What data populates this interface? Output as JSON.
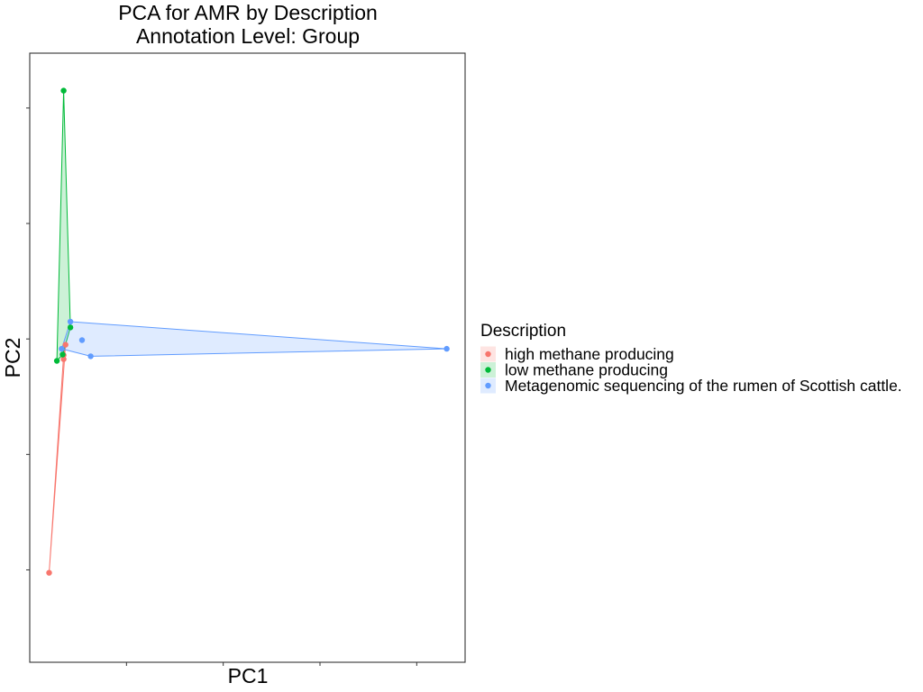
{
  "chart_data": {
    "type": "scatter",
    "title": [
      "PCA for AMR by Description",
      "Annotation Level: Group"
    ],
    "xlabel": "PC1",
    "ylabel": "PC2",
    "xlim": [
      0,
      45
    ],
    "ylim": [
      -5.6,
      4.95
    ],
    "x_ticks": [
      10,
      20,
      30,
      40
    ],
    "y_ticks": [
      -4,
      -2,
      0,
      2,
      4
    ],
    "tick_labels_shown": false,
    "grid": false,
    "hulls": true,
    "legend": {
      "title": "Description",
      "position": "right"
    },
    "series": [
      {
        "name": "high methane producing",
        "color": "#F8766D",
        "points": [
          [
            3.7,
            -0.1
          ],
          [
            3.5,
            -0.28
          ],
          [
            3.5,
            -0.35
          ],
          [
            2.0,
            -4.05
          ]
        ]
      },
      {
        "name": "low methane producing",
        "color": "#00BA38",
        "points": [
          [
            3.5,
            4.3
          ],
          [
            4.2,
            0.2
          ],
          [
            3.4,
            -0.27
          ],
          [
            2.8,
            -0.38
          ]
        ]
      },
      {
        "name": "Metagenomic sequencing of the rumen of Scottish cattle.",
        "color": "#619CFF",
        "points": [
          [
            4.2,
            0.3
          ],
          [
            5.4,
            -0.02
          ],
          [
            3.3,
            -0.17
          ],
          [
            6.3,
            -0.3
          ],
          [
            43.1,
            -0.17
          ]
        ]
      }
    ]
  }
}
